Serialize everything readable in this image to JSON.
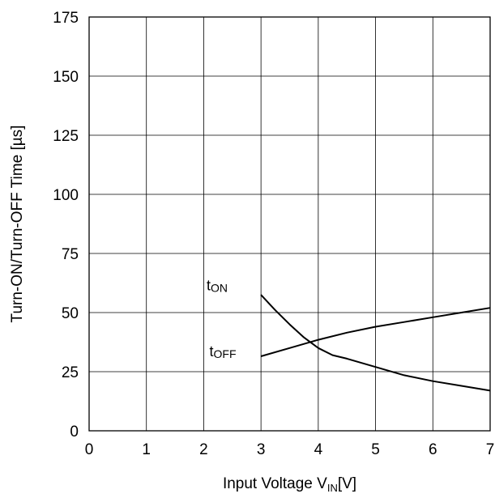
{
  "chart_data": {
    "type": "line",
    "title": "",
    "xlabel": {
      "main": "Input Voltage V",
      "sub": "IN",
      "suffix": "[V]"
    },
    "ylabel": "Turn-ON/Turn-OFF Time [µs]",
    "xlim": [
      0,
      7
    ],
    "ylim": [
      0,
      175
    ],
    "xticks": [
      0,
      1,
      2,
      3,
      4,
      5,
      6,
      7
    ],
    "yticks": [
      0,
      25,
      50,
      75,
      100,
      125,
      150,
      175
    ],
    "grid": true,
    "series": [
      {
        "name": "tON",
        "label_main": "t",
        "label_sub": "ON",
        "x": [
          3.0,
          3.25,
          3.5,
          3.75,
          4.0,
          4.25,
          4.5,
          5.0,
          5.5,
          6.0,
          6.5,
          7.0
        ],
        "y": [
          57.5,
          51,
          45,
          39.5,
          35,
          32,
          30.5,
          27,
          23.5,
          21,
          19,
          17
        ]
      },
      {
        "name": "tOFF",
        "label_main": "t",
        "label_sub": "OFF",
        "x": [
          3.0,
          3.5,
          4.0,
          4.5,
          5.0,
          5.5,
          6.0,
          6.5,
          7.0
        ],
        "y": [
          31.5,
          35,
          38.5,
          41.5,
          44,
          46,
          48,
          50,
          52
        ]
      }
    ]
  }
}
